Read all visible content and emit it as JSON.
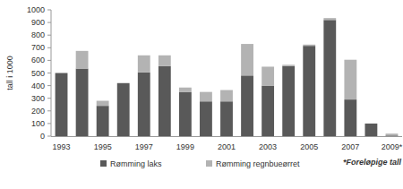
{
  "chart_data": {
    "type": "bar",
    "stacked": true,
    "y_label": "tall i 1000",
    "annotation": "*Foreløpige tall",
    "categories": [
      "1993",
      null,
      "1995",
      null,
      "1997",
      null,
      "1999",
      null,
      "2001",
      null,
      "2003",
      null,
      "2005",
      null,
      "2007",
      null,
      "2009*"
    ],
    "series": [
      {
        "name": "Rømming laks",
        "color": "#595959",
        "values": [
          500,
          535,
          240,
          420,
          505,
          555,
          350,
          275,
          275,
          480,
          400,
          555,
          715,
          920,
          290,
          100,
          5
        ]
      },
      {
        "name": "Rømming regnbueørret",
        "color": "#b3b3b3",
        "values": [
          0,
          140,
          40,
          0,
          135,
          85,
          35,
          75,
          90,
          250,
          150,
          10,
          10,
          15,
          315,
          0,
          15
        ]
      }
    ],
    "ylim": [
      0,
      1000
    ],
    "yticks": [
      0,
      100,
      200,
      300,
      400,
      500,
      600,
      700,
      800,
      900,
      1000
    ],
    "grid": false,
    "legend": "bottom"
  }
}
